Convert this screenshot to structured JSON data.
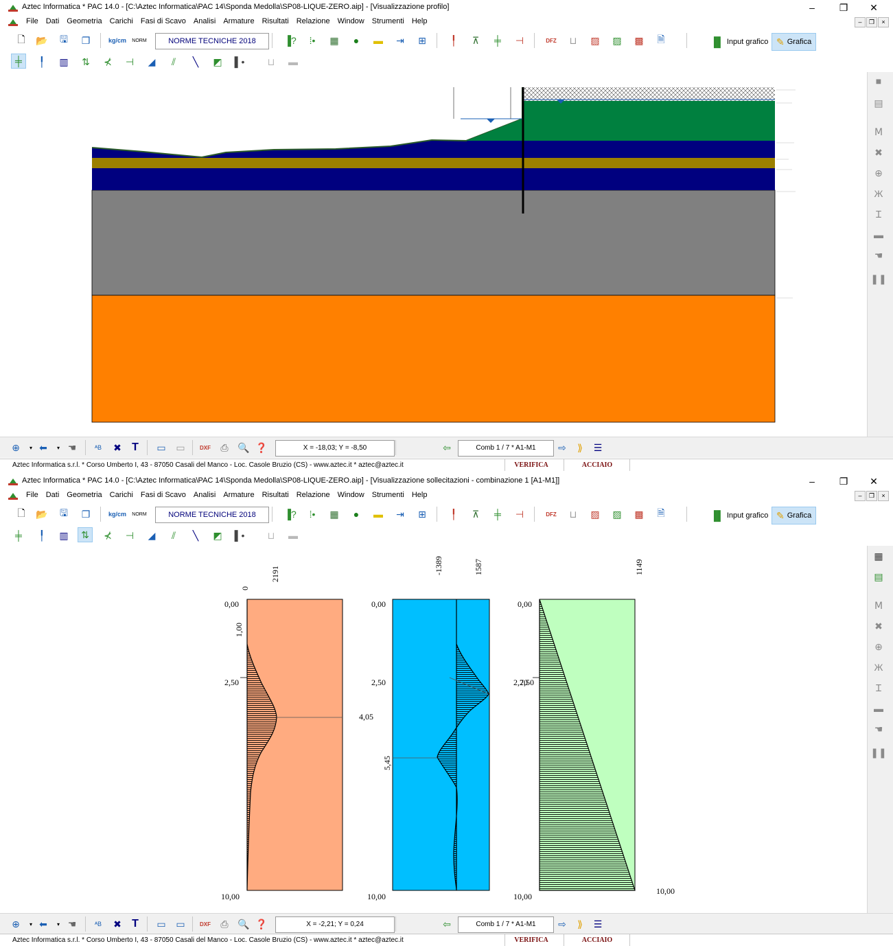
{
  "colors": {
    "toolbar_bg": "#f0f0f0",
    "soil_green": "#00803f",
    "soil_navy": "#00007f",
    "soil_olive": "#9c8000",
    "soil_grey": "#808080",
    "soil_orange": "#ff8000",
    "moment_fill": "#ffab80",
    "shear_fill": "#00bfff",
    "third_fill": "#bfffbf",
    "status_red": "#7a1010"
  },
  "window_a": {
    "title": "Aztec Informatica * PAC 14.0  - [C:\\Aztec Informatica\\PAC 14\\Sponda Medolla\\SP08-LIQUE-ZERO.aip] - [Visualizzazione profilo]",
    "coord_readout": "X = -18,03;  Y = -8,50",
    "comb_label": "Comb 1 / 7 * A1-M1"
  },
  "window_b": {
    "title": "Aztec Informatica * PAC 14.0  - [C:\\Aztec Informatica\\PAC 14\\Sponda Medolla\\SP08-LIQUE-ZERO.aip] - [Visualizzazione sollecitazioni  - combinazione 1  [A1-M1]]",
    "coord_readout": "X = -2,21;  Y = 0,24",
    "comb_label": "Comb 1 / 7 * A1-M1"
  },
  "window_controls": {
    "minimize": "–",
    "maximize": "❐",
    "close": "✕"
  },
  "mdi_controls": {
    "minimize": "–",
    "restore": "❐",
    "close": "×"
  },
  "menu": [
    "File",
    "Dati",
    "Geometria",
    "Carichi",
    "Fasi di Scavo",
    "Analisi",
    "Armature",
    "Risultati",
    "Relazione",
    "Window",
    "Strumenti",
    "Help"
  ],
  "toolbar": {
    "units_label": "kg/cm",
    "norm_icon_label": "NORM",
    "norme_label": "NORME TECNICHE 2018",
    "input_grafico_label": "Input grafico",
    "grafica_label": "Grafica"
  },
  "statusbar": {
    "company": "Aztec Informatica s.r.l. * Corso Umberto I, 43 - 87050 Casali del Manco - Loc. Casole Bruzio (CS)  -  www.aztec.it * aztec@aztec.it",
    "verifica": "VERIFICA",
    "acciaio": "ACCIAIO"
  },
  "diagrams": {
    "moment": {
      "top_labels": [
        "0",
        "2191"
      ],
      "depth_labels": [
        "0,00",
        "1,00",
        "2,50",
        "4,05",
        "10,00"
      ]
    },
    "shear": {
      "top_labels": [
        "-1389",
        "1587"
      ],
      "depth_labels": [
        "0,00",
        "2,50",
        "5,45",
        "10,00"
      ]
    },
    "third": {
      "top_labels": [
        "1149"
      ],
      "depth_labels": [
        "0,00",
        "2,70",
        "2,50",
        "10,00",
        "10,00"
      ]
    }
  }
}
